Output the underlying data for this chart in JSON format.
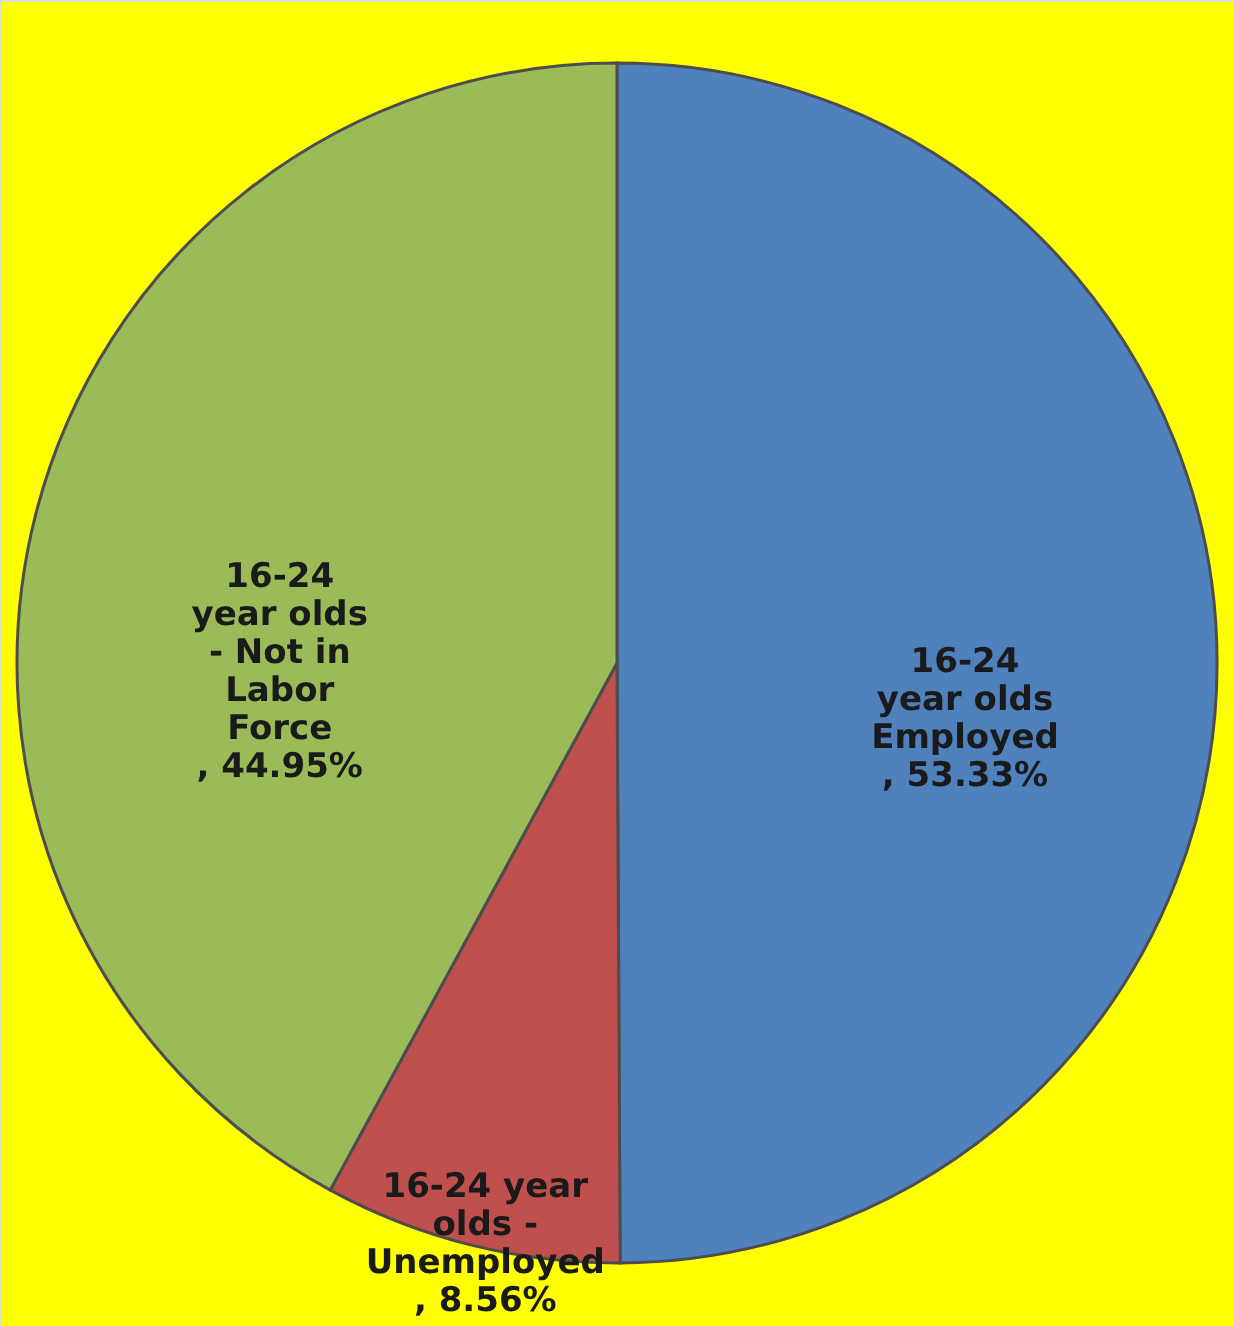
{
  "chart_data": {
    "type": "pie",
    "categories": [
      "16-24\nyear olds\nEmployed",
      "16-24 year\nolds -\nUnemployed",
      "16-24\nyear olds\n- Not in\nLabor\nForce"
    ],
    "values": [
      53.33,
      8.56,
      44.95
    ],
    "value_labels": [
      ", 53.33%",
      ", 8.56%",
      ", 44.95%"
    ],
    "colors": [
      "#4f81bd",
      "#c0504d",
      "#9bbb59"
    ],
    "legend": false
  }
}
